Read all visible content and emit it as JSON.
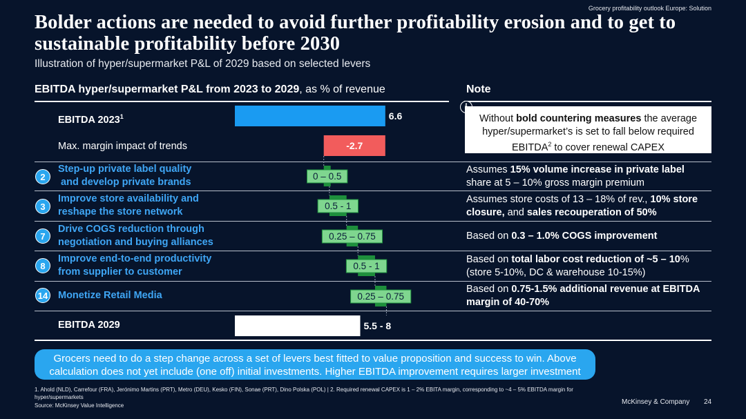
{
  "header": {
    "top_label": "Grocery profitability outlook Europe: Solution",
    "title": "Bolder actions are needed to avoid further profitability erosion and to get to sustainable profitability before 2030",
    "subtitle": "Illustration of hyper/supermarket P&L of 2029 based on selected levers"
  },
  "chart_heading": {
    "bold": "EBITDA hyper/supermarket P&L from 2023 to 2029",
    "rest": ", as % of revenue"
  },
  "note_heading": "Note",
  "rows": [
    {
      "badge": "",
      "label_line1": "EBITDA 2023",
      "label_sup": "1",
      "label_line2": ""
    },
    {
      "badge": "",
      "label_line1": "Max. margin impact of trends",
      "label_sup": "",
      "label_line2": ""
    },
    {
      "badge": "2",
      "label_line1": "Step-up private label quality",
      "label_sup": "",
      "label_line2": " and develop private brands"
    },
    {
      "badge": "3",
      "label_line1": "Improve store availability and",
      "label_sup": "",
      "label_line2": "reshape the store network"
    },
    {
      "badge": "7",
      "label_line1": "Drive COGS reduction through",
      "label_sup": "",
      "label_line2": "negotiation and buying alliances"
    },
    {
      "badge": "8",
      "label_line1": "Improve end-to-end productivity",
      "label_sup": "",
      "label_line2": "from supplier to customer"
    },
    {
      "badge": "14",
      "label_line1": "Monetize Retail Media",
      "label_sup": "",
      "label_line2": ""
    },
    {
      "badge": "",
      "label_line1": "EBITDA 2029",
      "label_sup": "",
      "label_line2": ""
    }
  ],
  "note_box": {
    "icon": "i",
    "t1": "Without ",
    "b1": "bold countering measures",
    "t2": " the average hyper/supermarket’s is set to fall below required EBITDA",
    "sup": "2",
    "t3": " to cover renewal CAPEX"
  },
  "notes": [
    {
      "t1": "Assumes ",
      "b1": "15% volume increase in private label",
      "t2": " share at 5 – 10% gross margin premium",
      "b2": "",
      "t3": "",
      "b3": ""
    },
    {
      "t1": "Assumes store costs of 13 – 18% of rev., ",
      "b1": "10% store closure,",
      "t2": " and ",
      "b2": "sales recouperation of 50%",
      "t3": "",
      "b3": ""
    },
    {
      "t1": "Based on ",
      "b1": "0.3 – 1.0% COGS improvement",
      "t2": "",
      "b2": "",
      "t3": "",
      "b3": ""
    },
    {
      "t1": "Based on ",
      "b1": "total labor cost reduction of ~5 – 10",
      "t2": "% (store 5-10%, DC & warehouse 10-15%)",
      "b2": "",
      "t3": "",
      "b3": ""
    },
    {
      "t1": "Based on ",
      "b1": "0.75-1.5% additional revenue at EBITDA margin of 40-70%",
      "t2": "",
      "b2": "",
      "t3": "",
      "b3": ""
    }
  ],
  "chart_data": {
    "type": "waterfall",
    "unit": "% of revenue",
    "bars": [
      {
        "name": "EBITDA 2023",
        "kind": "total",
        "start": 0,
        "end": 6.6,
        "label": "6.6",
        "color": "#1a9bf2"
      },
      {
        "name": "Max. margin impact of trends",
        "kind": "decrease",
        "start": 3.9,
        "end": 6.6,
        "label": "-2.7",
        "color": "#f25c5c"
      },
      {
        "name": "Step-up private label quality and develop private brands",
        "kind": "range",
        "low": 0,
        "high": 0.5,
        "label": "0 – 0.5",
        "color": "#1e8f3c"
      },
      {
        "name": "Improve store availability and reshape the store network",
        "kind": "range",
        "low": 0.5,
        "high": 1,
        "label": "0.5 - 1",
        "color": "#1e8f3c"
      },
      {
        "name": "Drive COGS reduction through negotiation and buying alliances",
        "kind": "range",
        "low": 0.25,
        "high": 0.75,
        "label": "0.25 – 0.75",
        "color": "#1e8f3c"
      },
      {
        "name": "Improve end-to-end productivity from supplier to customer",
        "kind": "range",
        "low": 0.5,
        "high": 1,
        "label": "0.5 - 1",
        "color": "#1e8f3c"
      },
      {
        "name": "Monetize Retail Media",
        "kind": "range",
        "low": 0.25,
        "high": 0.75,
        "label": "0.25 – 0.75",
        "color": "#1e8f3c"
      },
      {
        "name": "EBITDA 2029",
        "kind": "total",
        "start": 0,
        "end": 5.5,
        "end_high": 8,
        "label": "5.5 - 8",
        "color": "#ffffff"
      }
    ],
    "label_fill_color": "#7fd68f"
  },
  "callout": "Grocers need to do a step change across a set of levers best fitted to value proposition and success to win. Above calculation does not yet include (one off) initial investments. Higher EBITDA improvement requires larger investment",
  "footnote": "1. Ahold (NLD), Carrefour (FRA), Jerónimo Martins (PRT), Metro (DEU), Kesko (FIN), Sonae (PRT), Dino Polska (POL) | 2. Required renewal CAPEX is 1 – 2% EBITA margin, corresponding to ~4 – 5% EBITDA margin for hyper/supermarkets",
  "source": "Source: McKinsey Value Intelligence",
  "brand": "McKinsey & Company",
  "page_number": "24"
}
